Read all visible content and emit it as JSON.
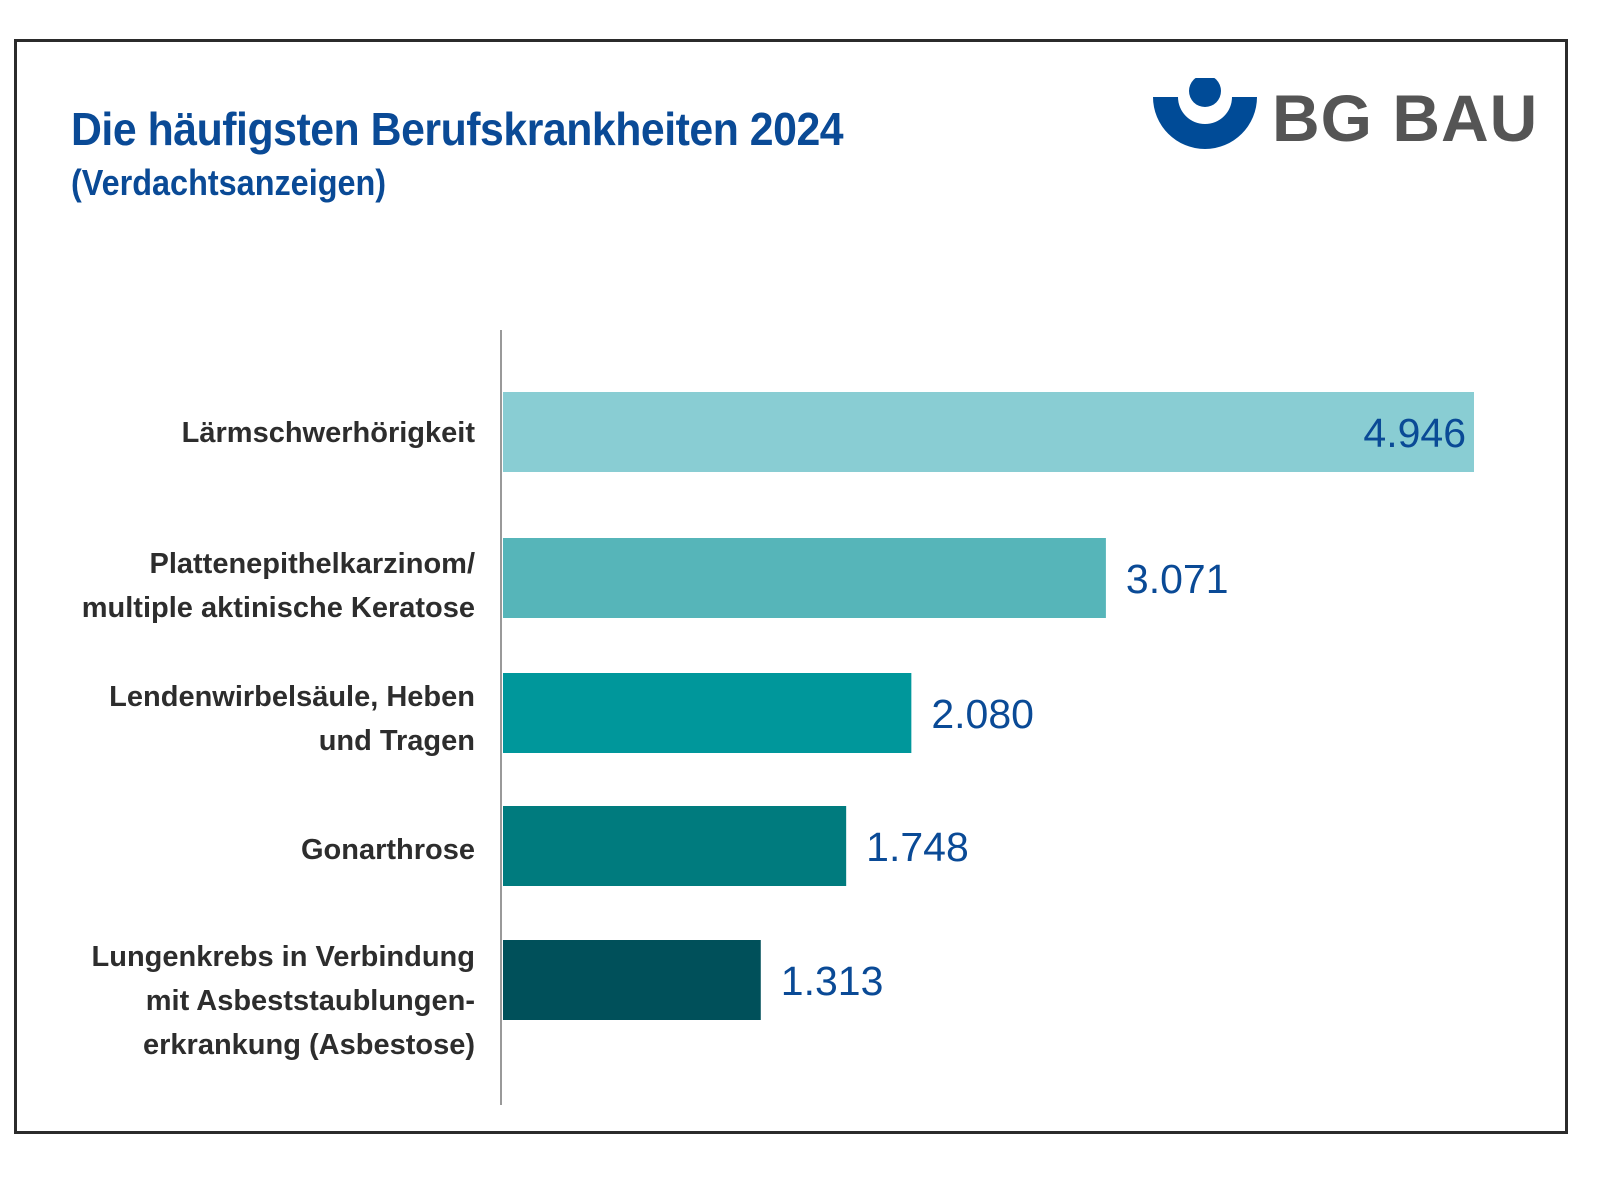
{
  "header": {
    "title": "Die häufigsten Berufskrankheiten 2024",
    "subtitle": "(Verdachtsanzeigen)"
  },
  "logo": {
    "text": "BG BAU",
    "icon": "bg-bau-figure-icon",
    "icon_color": "#004b97",
    "text_color": "#555555"
  },
  "chart_data": {
    "type": "bar",
    "orientation": "horizontal",
    "title": "Die häufigsten Berufskrankheiten 2024",
    "subtitle": "(Verdachtsanzeigen)",
    "xlabel": "",
    "ylabel": "",
    "xlim": [
      0,
      4946
    ],
    "grid": false,
    "legend": "none",
    "categories": [
      [
        "Lärmschwerhörigkeit"
      ],
      [
        "Plattenepithelkarzinom/",
        "multiple aktinische Keratose"
      ],
      [
        "Lendenwirbelsäule, Heben",
        "und Tragen"
      ],
      [
        "Gonarthrose"
      ],
      [
        "Lungenkrebs in Verbindung",
        "mit Asbeststaublungen-",
        "erkrankung (Asbestose)"
      ]
    ],
    "values": [
      4946,
      3071,
      2080,
      1748,
      1313
    ],
    "value_labels": [
      "4.946",
      "3.071",
      "2.080",
      "1.748",
      "1.313"
    ],
    "colors": [
      "#89cdd3",
      "#56b5b9",
      "#00979b",
      "#007b7e",
      "#00505a"
    ],
    "value_label_color": "#0a4a96",
    "label_color": "#2d2d2d",
    "axis_color": "#999999"
  }
}
